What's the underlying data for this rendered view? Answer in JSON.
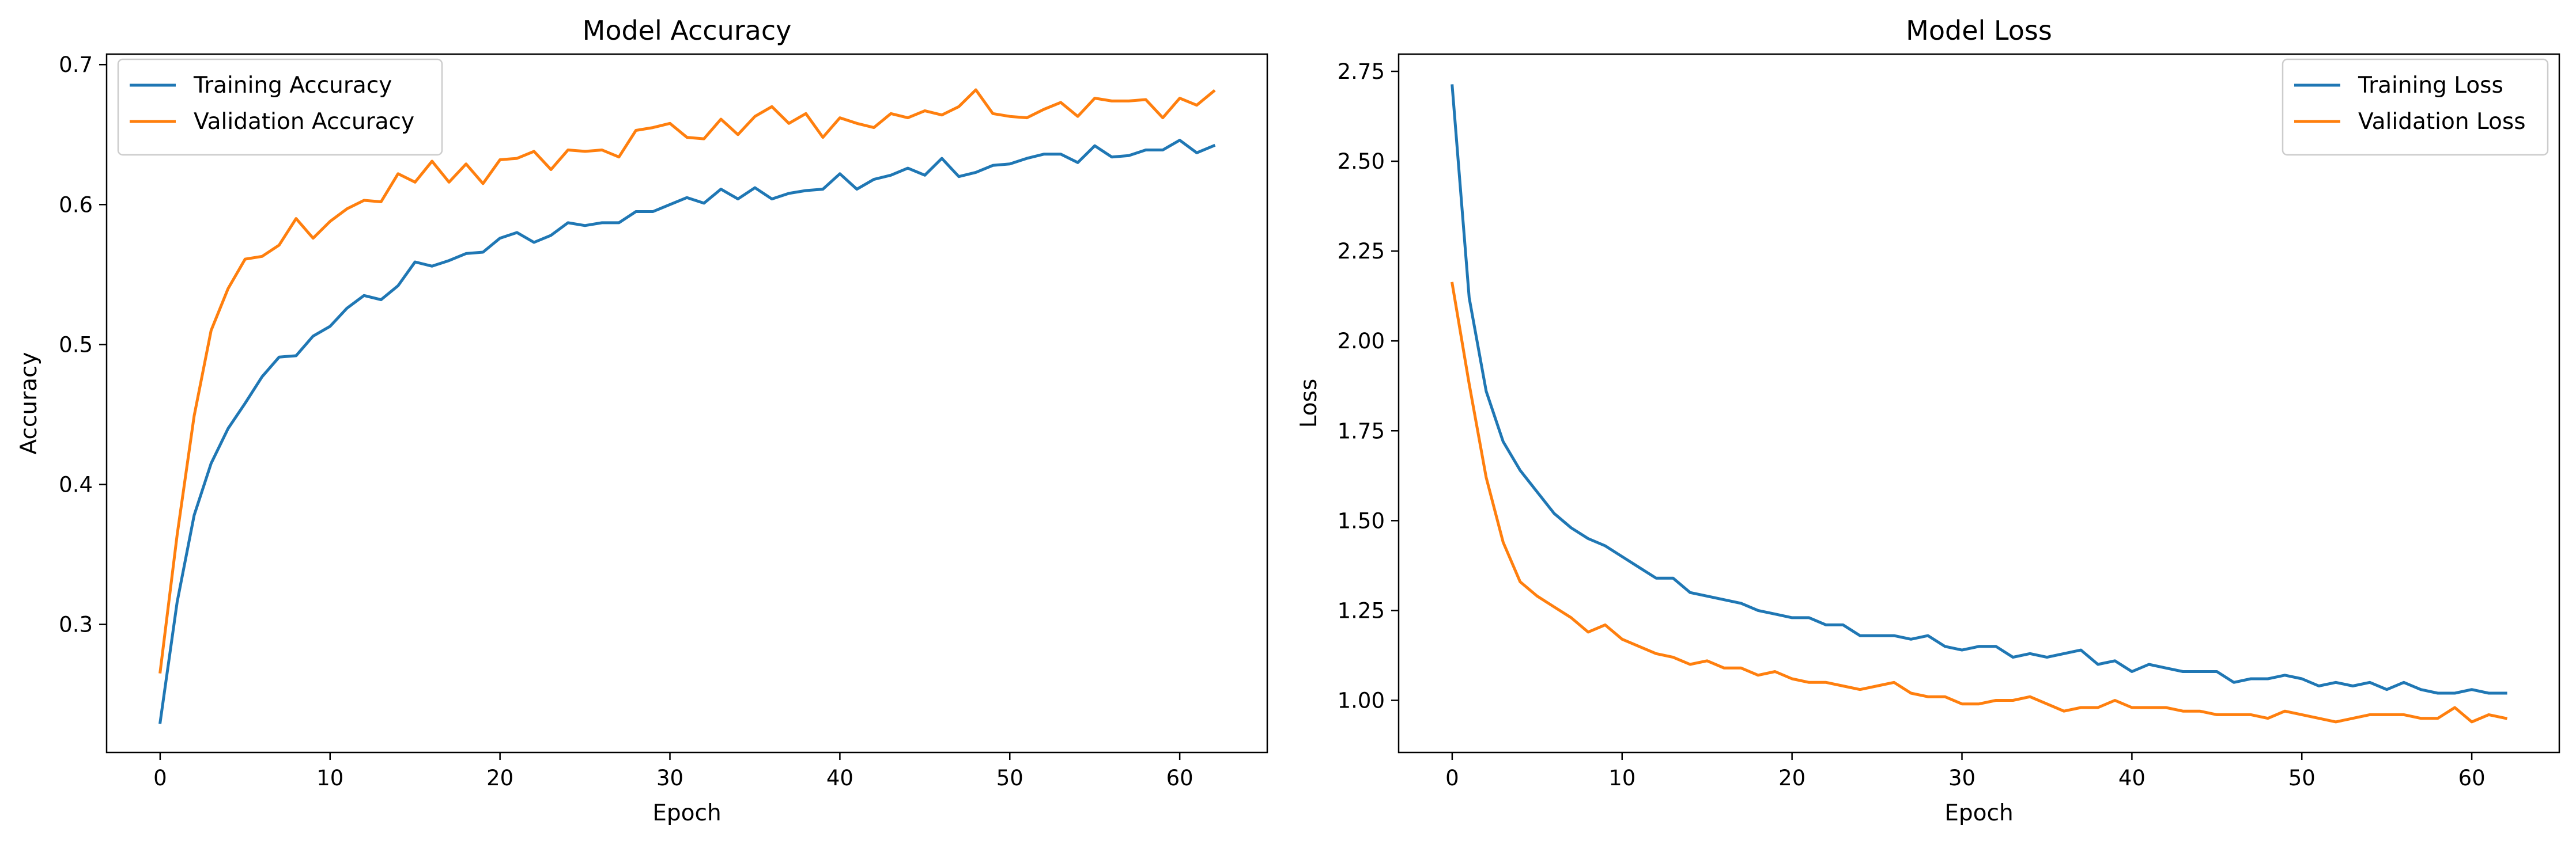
{
  "chart_data": [
    {
      "type": "line",
      "title": "Model Accuracy",
      "xlabel": "Epoch",
      "ylabel": "Accuracy",
      "xlim": [
        -3.15,
        65.15
      ],
      "ylim": [
        0.2085,
        0.7075
      ],
      "xticks": [
        0,
        10,
        20,
        30,
        40,
        50,
        60
      ],
      "yticks": [
        0.3,
        0.4,
        0.5,
        0.6,
        0.7
      ],
      "ytick_decimals": 1,
      "legend": "top-left",
      "grid": false,
      "series": [
        {
          "name": "Training Accuracy",
          "color": "#1f77b4",
          "values": [
            0.23,
            0.316,
            0.378,
            0.415,
            0.44,
            0.458,
            0.477,
            0.491,
            0.492,
            0.506,
            0.513,
            0.526,
            0.535,
            0.532,
            0.542,
            0.559,
            0.556,
            0.56,
            0.565,
            0.566,
            0.576,
            0.58,
            0.573,
            0.578,
            0.587,
            0.585,
            0.587,
            0.587,
            0.595,
            0.595,
            0.6,
            0.605,
            0.601,
            0.611,
            0.604,
            0.612,
            0.604,
            0.608,
            0.61,
            0.611,
            0.622,
            0.611,
            0.618,
            0.621,
            0.626,
            0.621,
            0.633,
            0.62,
            0.623,
            0.628,
            0.629,
            0.633,
            0.636,
            0.636,
            0.63,
            0.642,
            0.634,
            0.635,
            0.639,
            0.639,
            0.646,
            0.637,
            0.642
          ]
        },
        {
          "name": "Validation Accuracy",
          "color": "#ff7f0e",
          "values": [
            0.266,
            0.364,
            0.449,
            0.51,
            0.54,
            0.561,
            0.563,
            0.571,
            0.59,
            0.576,
            0.588,
            0.597,
            0.603,
            0.602,
            0.622,
            0.616,
            0.631,
            0.616,
            0.629,
            0.615,
            0.632,
            0.633,
            0.638,
            0.625,
            0.639,
            0.638,
            0.639,
            0.634,
            0.653,
            0.655,
            0.658,
            0.648,
            0.647,
            0.661,
            0.65,
            0.663,
            0.67,
            0.658,
            0.665,
            0.648,
            0.662,
            0.658,
            0.655,
            0.665,
            0.662,
            0.667,
            0.664,
            0.67,
            0.682,
            0.665,
            0.663,
            0.662,
            0.668,
            0.673,
            0.663,
            0.676,
            0.674,
            0.674,
            0.675,
            0.662,
            0.676,
            0.671,
            0.681
          ]
        }
      ]
    },
    {
      "type": "line",
      "title": "Model Loss",
      "xlabel": "Epoch",
      "ylabel": "Loss",
      "xlim": [
        -3.15,
        65.15
      ],
      "ylim": [
        0.855,
        2.798
      ],
      "xticks": [
        0,
        10,
        20,
        30,
        40,
        50,
        60
      ],
      "yticks": [
        1.0,
        1.25,
        1.5,
        1.75,
        2.0,
        2.25,
        2.5,
        2.75
      ],
      "ytick_decimals": 2,
      "legend": "top-right",
      "grid": false,
      "series": [
        {
          "name": "Training Loss",
          "color": "#1f77b4",
          "values": [
            2.71,
            2.12,
            1.86,
            1.72,
            1.64,
            1.58,
            1.52,
            1.48,
            1.45,
            1.43,
            1.4,
            1.37,
            1.34,
            1.34,
            1.3,
            1.29,
            1.28,
            1.27,
            1.25,
            1.24,
            1.23,
            1.23,
            1.21,
            1.21,
            1.18,
            1.18,
            1.18,
            1.17,
            1.18,
            1.15,
            1.14,
            1.15,
            1.15,
            1.12,
            1.13,
            1.12,
            1.13,
            1.14,
            1.1,
            1.11,
            1.08,
            1.1,
            1.09,
            1.08,
            1.08,
            1.08,
            1.05,
            1.06,
            1.06,
            1.07,
            1.06,
            1.04,
            1.05,
            1.04,
            1.05,
            1.03,
            1.05,
            1.03,
            1.02,
            1.02,
            1.03,
            1.02,
            1.02
          ]
        },
        {
          "name": "Validation Loss",
          "color": "#ff7f0e",
          "values": [
            2.16,
            1.88,
            1.62,
            1.44,
            1.33,
            1.29,
            1.26,
            1.23,
            1.19,
            1.21,
            1.17,
            1.15,
            1.13,
            1.12,
            1.1,
            1.11,
            1.09,
            1.09,
            1.07,
            1.08,
            1.06,
            1.05,
            1.05,
            1.04,
            1.03,
            1.04,
            1.05,
            1.02,
            1.01,
            1.01,
            0.99,
            0.99,
            1.0,
            1.0,
            1.01,
            0.99,
            0.97,
            0.98,
            0.98,
            1.0,
            0.98,
            0.98,
            0.98,
            0.97,
            0.97,
            0.96,
            0.96,
            0.96,
            0.95,
            0.97,
            0.96,
            0.95,
            0.94,
            0.95,
            0.96,
            0.96,
            0.96,
            0.95,
            0.95,
            0.98,
            0.94,
            0.96,
            0.95
          ]
        }
      ]
    }
  ]
}
